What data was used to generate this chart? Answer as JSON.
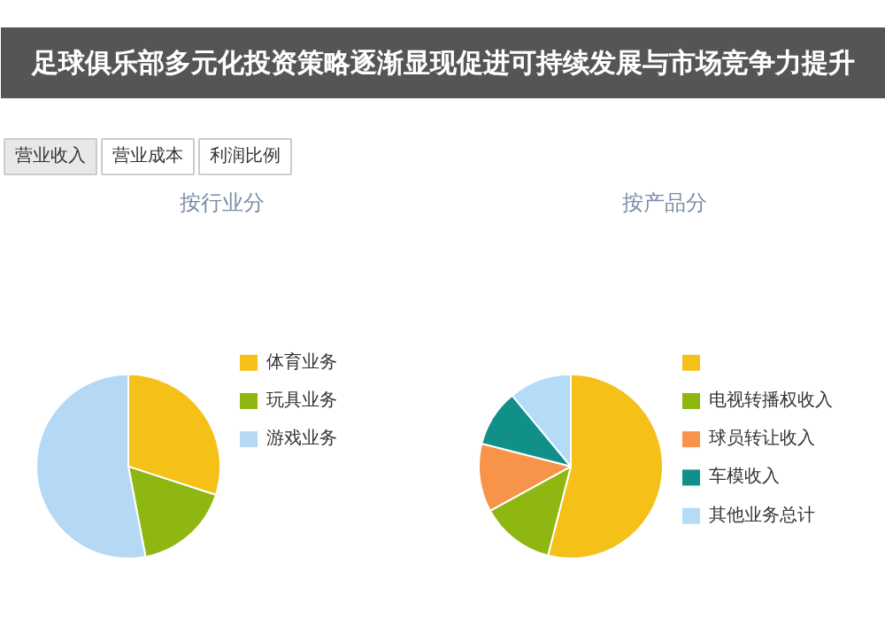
{
  "chart_data": [
    {
      "type": "pie",
      "title": "按行业分",
      "annotations": [
        "足球俱乐部多元化投资策略逐渐显现促进可持续发展与市场竞争力提升",
        "营业收入",
        "营业成本",
        "利润比例"
      ],
      "categories": [
        "体育业务",
        "玩具业务",
        "游戏业务"
      ],
      "values": [
        30,
        17,
        53
      ],
      "colors": [
        "#f5c018",
        "#8fb712",
        "#b5d8f5"
      ],
      "legend": "right"
    },
    {
      "type": "pie",
      "title": "按产品分",
      "categories": [
        null,
        "电视转播权收入",
        "球员转让收入",
        "车模收入",
        "其他业务总计"
      ],
      "values": [
        54,
        13,
        12,
        10,
        11
      ],
      "colors": [
        "#f5c018",
        "#8fb712",
        "#f7944a",
        "#11908a",
        "#b5dcf7"
      ],
      "legend": "right"
    }
  ]
}
